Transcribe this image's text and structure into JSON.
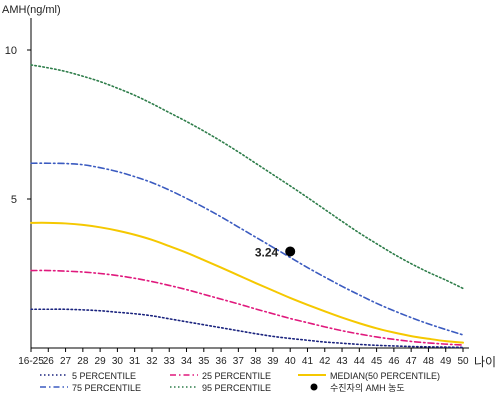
{
  "chart_data": {
    "type": "line",
    "ylabel": "AMH(ng/ml)",
    "xlabel": "나이",
    "categories": [
      "16-25",
      "26",
      "27",
      "28",
      "29",
      "30",
      "31",
      "32",
      "33",
      "34",
      "35",
      "36",
      "37",
      "38",
      "39",
      "40",
      "41",
      "42",
      "43",
      "44",
      "45",
      "46",
      "47",
      "48",
      "49",
      "50"
    ],
    "ylim": [
      0,
      11
    ],
    "yticks": [
      5,
      10
    ],
    "grid": false,
    "legend_position": "bottom",
    "series": [
      {
        "name": "5 PERCENTILE",
        "color": "#1a237e",
        "style": "dotted",
        "values": [
          1.3,
          1.3,
          1.3,
          1.28,
          1.25,
          1.2,
          1.15,
          1.08,
          0.98,
          0.88,
          0.78,
          0.68,
          0.58,
          0.48,
          0.39,
          0.32,
          0.26,
          0.2,
          0.16,
          0.12,
          0.09,
          0.07,
          0.05,
          0.04,
          0.03,
          0.02
        ]
      },
      {
        "name": "25 PERCENTILE",
        "color": "#e0197d",
        "style": "dashdot",
        "values": [
          2.6,
          2.6,
          2.58,
          2.55,
          2.5,
          2.43,
          2.34,
          2.23,
          2.1,
          1.96,
          1.8,
          1.64,
          1.48,
          1.31,
          1.15,
          0.99,
          0.85,
          0.71,
          0.58,
          0.47,
          0.37,
          0.29,
          0.22,
          0.17,
          0.13,
          0.1
        ]
      },
      {
        "name": "MEDIAN(50 PERCENTILE)",
        "color": "#f5c800",
        "style": "solid",
        "values": [
          4.2,
          4.2,
          4.18,
          4.13,
          4.05,
          3.94,
          3.8,
          3.63,
          3.42,
          3.2,
          2.95,
          2.7,
          2.44,
          2.18,
          1.93,
          1.68,
          1.45,
          1.23,
          1.02,
          0.83,
          0.66,
          0.52,
          0.4,
          0.31,
          0.23,
          0.18
        ]
      },
      {
        "name": "75 PERCENTILE",
        "color": "#3b5bc0",
        "style": "dashdot",
        "values": [
          6.2,
          6.2,
          6.19,
          6.15,
          6.05,
          5.92,
          5.75,
          5.55,
          5.3,
          5.02,
          4.72,
          4.4,
          4.06,
          3.72,
          3.38,
          3.04,
          2.7,
          2.38,
          2.07,
          1.78,
          1.5,
          1.25,
          1.02,
          0.81,
          0.62,
          0.44
        ]
      },
      {
        "name": "95 PERCENTILE",
        "color": "#2e7d4a",
        "style": "dotted",
        "values": [
          9.5,
          9.4,
          9.28,
          9.12,
          8.94,
          8.72,
          8.48,
          8.2,
          7.9,
          7.6,
          7.28,
          6.94,
          6.58,
          6.2,
          5.82,
          5.44,
          5.05,
          4.65,
          4.25,
          3.86,
          3.5,
          3.15,
          2.83,
          2.54,
          2.28,
          2.0
        ]
      }
    ],
    "marker": {
      "name": "수진자의 AMH 농도",
      "x": "40",
      "y": 3.24,
      "label": "3.24"
    }
  }
}
